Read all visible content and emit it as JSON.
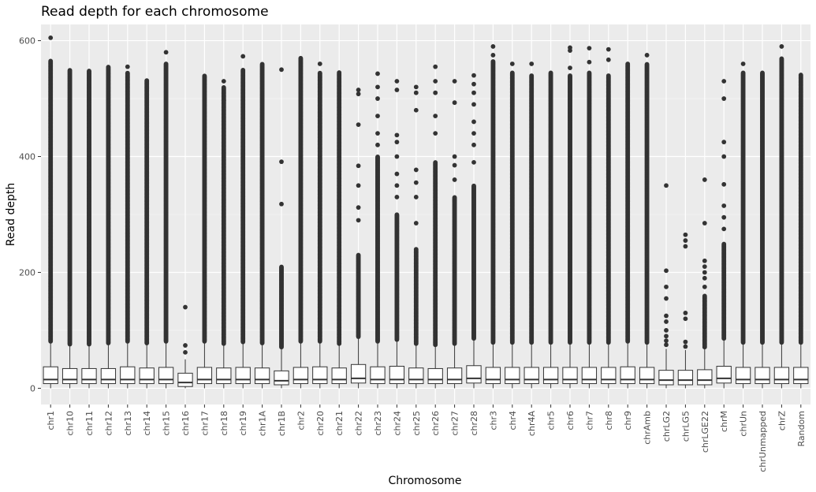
{
  "chart_data": {
    "type": "boxplot",
    "title": "Read depth for each chromosome",
    "xlabel": "Chromosome",
    "ylabel": "Read depth",
    "ylim": [
      -28,
      628
    ],
    "yticks": [
      0,
      200,
      400,
      600
    ],
    "grid": true,
    "legend": "none",
    "colors": {
      "panel": "#ebebeb",
      "grid_major": "#ffffff",
      "box_fill": "#ffffff",
      "box_line": "#333333",
      "outlier": "#333333",
      "tick_text": "#4d4d4d"
    },
    "categories": [
      "chr1",
      "chr10",
      "chr11",
      "chr12",
      "chr13",
      "chr14",
      "chr15",
      "chr16",
      "chr17",
      "chr18",
      "chr19",
      "chr1A",
      "chr1B",
      "chr2",
      "chr20",
      "chr21",
      "chr22",
      "chr23",
      "chr24",
      "chr25",
      "chr26",
      "chr27",
      "chr28",
      "chr3",
      "chr4",
      "chr4A",
      "chr5",
      "chr6",
      "chr7",
      "chr8",
      "chr9",
      "chrAmb",
      "chrLG2",
      "chrLG5",
      "chrLGE22",
      "chrM",
      "chrUn",
      "chrUnmapped",
      "chrZ",
      "Random"
    ],
    "boxes": [
      {
        "q1": 8,
        "median": 15,
        "q3": 37,
        "lower": 0,
        "upper": 80,
        "max": 605,
        "dense_to": 565,
        "outliers": [
          605
        ]
      },
      {
        "q1": 8,
        "median": 15,
        "q3": 34,
        "lower": 0,
        "upper": 75,
        "max": 553,
        "dense_to": 550,
        "outliers": []
      },
      {
        "q1": 8,
        "median": 15,
        "q3": 34,
        "lower": 0,
        "upper": 75,
        "max": 550,
        "dense_to": 548,
        "outliers": []
      },
      {
        "q1": 8,
        "median": 15,
        "q3": 34,
        "lower": 0,
        "upper": 77,
        "max": 557,
        "dense_to": 555,
        "outliers": []
      },
      {
        "q1": 8,
        "median": 15,
        "q3": 37,
        "lower": 0,
        "upper": 80,
        "max": 555,
        "dense_to": 545,
        "outliers": [
          555
        ]
      },
      {
        "q1": 8,
        "median": 15,
        "q3": 35,
        "lower": 0,
        "upper": 77,
        "max": 534,
        "dense_to": 532,
        "outliers": []
      },
      {
        "q1": 8,
        "median": 15,
        "q3": 36,
        "lower": 0,
        "upper": 80,
        "max": 580,
        "dense_to": 560,
        "outliers": [
          580
        ]
      },
      {
        "q1": 3,
        "median": 10,
        "q3": 26,
        "lower": 0,
        "upper": 50,
        "max": 140,
        "dense_to": 0,
        "outliers": [
          62,
          74,
          140
        ]
      },
      {
        "q1": 8,
        "median": 15,
        "q3": 36,
        "lower": 0,
        "upper": 80,
        "max": 543,
        "dense_to": 540,
        "outliers": []
      },
      {
        "q1": 8,
        "median": 15,
        "q3": 35,
        "lower": 0,
        "upper": 76,
        "max": 530,
        "dense_to": 520,
        "outliers": [
          497,
          530
        ]
      },
      {
        "q1": 8,
        "median": 15,
        "q3": 36,
        "lower": 0,
        "upper": 79,
        "max": 573,
        "dense_to": 550,
        "outliers": [
          573
        ]
      },
      {
        "q1": 8,
        "median": 15,
        "q3": 35,
        "lower": 0,
        "upper": 77,
        "max": 563,
        "dense_to": 560,
        "outliers": []
      },
      {
        "q1": 6,
        "median": 13,
        "q3": 30,
        "lower": 0,
        "upper": 70,
        "max": 550,
        "dense_to": 210,
        "outliers": [
          318,
          391,
          550
        ]
      },
      {
        "q1": 8,
        "median": 15,
        "q3": 36,
        "lower": 0,
        "upper": 80,
        "max": 575,
        "dense_to": 570,
        "outliers": []
      },
      {
        "q1": 8,
        "median": 15,
        "q3": 37,
        "lower": 0,
        "upper": 80,
        "max": 560,
        "dense_to": 545,
        "outliers": [
          560
        ]
      },
      {
        "q1": 8,
        "median": 15,
        "q3": 35,
        "lower": 0,
        "upper": 76,
        "max": 550,
        "dense_to": 545,
        "outliers": []
      },
      {
        "q1": 9,
        "median": 17,
        "q3": 41,
        "lower": 0,
        "upper": 88,
        "max": 515,
        "dense_to": 230,
        "outliers": [
          290,
          312,
          350,
          384,
          455,
          508,
          515
        ]
      },
      {
        "q1": 8,
        "median": 15,
        "q3": 37,
        "lower": 0,
        "upper": 80,
        "max": 543,
        "dense_to": 400,
        "outliers": [
          420,
          440,
          470,
          500,
          520,
          543
        ]
      },
      {
        "q1": 8,
        "median": 15,
        "q3": 38,
        "lower": 0,
        "upper": 83,
        "max": 530,
        "dense_to": 300,
        "outliers": [
          330,
          350,
          370,
          400,
          425,
          437,
          515,
          530
        ]
      },
      {
        "q1": 8,
        "median": 15,
        "q3": 35,
        "lower": 0,
        "upper": 76,
        "max": 520,
        "dense_to": 240,
        "outliers": [
          285,
          330,
          355,
          377,
          480,
          510,
          520
        ]
      },
      {
        "q1": 8,
        "median": 15,
        "q3": 34,
        "lower": 0,
        "upper": 74,
        "max": 555,
        "dense_to": 390,
        "outliers": [
          440,
          470,
          510,
          530,
          555
        ]
      },
      {
        "q1": 8,
        "median": 15,
        "q3": 35,
        "lower": 0,
        "upper": 76,
        "max": 532,
        "dense_to": 330,
        "outliers": [
          360,
          385,
          400,
          493,
          530
        ]
      },
      {
        "q1": 9,
        "median": 17,
        "q3": 39,
        "lower": 0,
        "upper": 85,
        "max": 540,
        "dense_to": 350,
        "outliers": [
          390,
          420,
          440,
          460,
          490,
          510,
          525,
          540
        ]
      },
      {
        "q1": 8,
        "median": 15,
        "q3": 36,
        "lower": 0,
        "upper": 78,
        "max": 590,
        "dense_to": 565,
        "outliers": [
          575,
          590
        ]
      },
      {
        "q1": 8,
        "median": 15,
        "q3": 36,
        "lower": 0,
        "upper": 78,
        "max": 560,
        "dense_to": 545,
        "outliers": [
          560
        ]
      },
      {
        "q1": 8,
        "median": 15,
        "q3": 36,
        "lower": 0,
        "upper": 78,
        "max": 560,
        "dense_to": 540,
        "outliers": [
          560
        ]
      },
      {
        "q1": 8,
        "median": 15,
        "q3": 36,
        "lower": 0,
        "upper": 78,
        "max": 547,
        "dense_to": 545,
        "outliers": []
      },
      {
        "q1": 8,
        "median": 15,
        "q3": 36,
        "lower": 0,
        "upper": 78,
        "max": 588,
        "dense_to": 540,
        "outliers": [
          553,
          583,
          588
        ]
      },
      {
        "q1": 8,
        "median": 15,
        "q3": 36,
        "lower": 0,
        "upper": 78,
        "max": 587,
        "dense_to": 545,
        "outliers": [
          563,
          587
        ]
      },
      {
        "q1": 8,
        "median": 15,
        "q3": 36,
        "lower": 0,
        "upper": 78,
        "max": 585,
        "dense_to": 540,
        "outliers": [
          567,
          585
        ]
      },
      {
        "q1": 8,
        "median": 15,
        "q3": 37,
        "lower": 0,
        "upper": 80,
        "max": 563,
        "dense_to": 560,
        "outliers": []
      },
      {
        "q1": 8,
        "median": 15,
        "q3": 36,
        "lower": 0,
        "upper": 78,
        "max": 575,
        "dense_to": 560,
        "outliers": [
          575
        ]
      },
      {
        "q1": 6,
        "median": 14,
        "q3": 31,
        "lower": 0,
        "upper": 68,
        "max": 350,
        "dense_to": 0,
        "outliers": [
          75,
          82,
          90,
          100,
          115,
          125,
          155,
          175,
          203,
          350
        ]
      },
      {
        "q1": 6,
        "median": 14,
        "q3": 31,
        "lower": 0,
        "upper": 66,
        "max": 265,
        "dense_to": 0,
        "outliers": [
          72,
          80,
          120,
          130,
          245,
          255,
          265
        ]
      },
      {
        "q1": 6,
        "median": 14,
        "q3": 32,
        "lower": 0,
        "upper": 70,
        "max": 360,
        "dense_to": 160,
        "outliers": [
          175,
          190,
          200,
          210,
          220,
          285,
          360
        ]
      },
      {
        "q1": 9,
        "median": 17,
        "q3": 38,
        "lower": 0,
        "upper": 85,
        "max": 530,
        "dense_to": 250,
        "outliers": [
          275,
          295,
          315,
          352,
          400,
          425,
          500,
          530
        ]
      },
      {
        "q1": 8,
        "median": 15,
        "q3": 36,
        "lower": 0,
        "upper": 78,
        "max": 560,
        "dense_to": 545,
        "outliers": [
          560
        ]
      },
      {
        "q1": 8,
        "median": 15,
        "q3": 36,
        "lower": 0,
        "upper": 78,
        "max": 548,
        "dense_to": 545,
        "outliers": []
      },
      {
        "q1": 8,
        "median": 15,
        "q3": 36,
        "lower": 0,
        "upper": 78,
        "max": 590,
        "dense_to": 570,
        "outliers": [
          590
        ]
      },
      {
        "q1": 8,
        "median": 15,
        "q3": 36,
        "lower": 0,
        "upper": 78,
        "max": 545,
        "dense_to": 542,
        "outliers": []
      }
    ]
  }
}
